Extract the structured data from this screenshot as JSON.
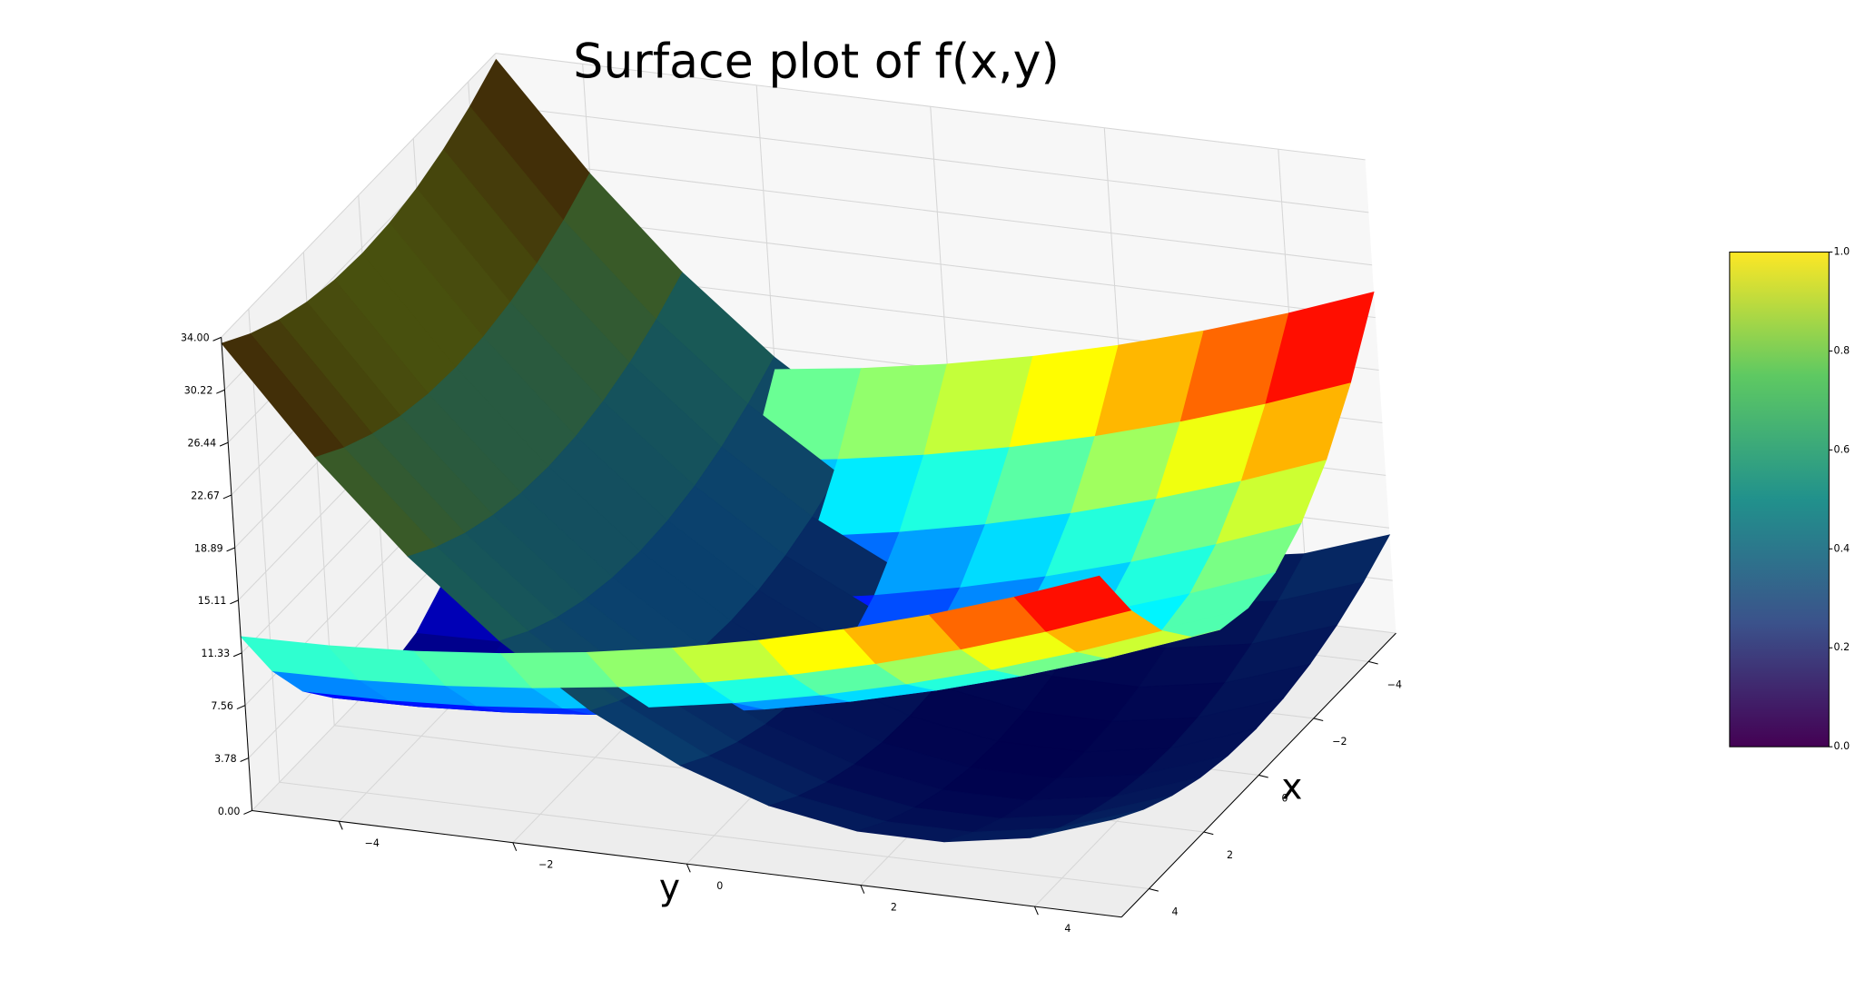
{
  "chart_data": {
    "type": "surface",
    "title": "Surface plot of f(x,y)",
    "x_label": "x",
    "y_label": "y",
    "x": [
      -5,
      -4,
      -3,
      -2,
      -1,
      0,
      1,
      2,
      3,
      4,
      5
    ],
    "y": [
      -5,
      -4,
      -3,
      -2,
      -1,
      0,
      1,
      2,
      3,
      4,
      5
    ],
    "xlim": [
      -5,
      5
    ],
    "ylim": [
      -5,
      5
    ],
    "zlim": [
      0,
      34
    ],
    "xticks": [
      {
        "value": -4,
        "label": "−4"
      },
      {
        "value": -2,
        "label": "−2"
      },
      0,
      2,
      4
    ],
    "yticks": [
      {
        "value": -4,
        "label": "−4"
      },
      {
        "value": -2,
        "label": "−2"
      },
      0,
      2,
      4
    ],
    "zticks": [
      {
        "value": 0,
        "label": "0.00"
      },
      3.78,
      7.56,
      11.33,
      15.11,
      18.89,
      22.67,
      26.44,
      30.22,
      {
        "value": 34,
        "label": "34.00"
      }
    ],
    "grid": true,
    "series": [
      {
        "colors": [
          "#00004d",
          "#0a3f6e",
          "#1a5a55",
          "#4a5a10",
          "#3a0000"
        ],
        "z": [
          [
            33.56,
            26.14,
            19.78,
            14.48,
            10.24,
            7.06,
            4.94,
            3.88,
            3.88,
            4.94,
            7.06
          ],
          [
            32.21,
            24.79,
            18.43,
            13.13,
            8.89,
            5.71,
            3.59,
            2.53,
            2.53,
            3.59,
            5.71
          ],
          [
            31.16,
            23.74,
            17.38,
            12.08,
            7.84,
            4.66,
            2.54,
            1.48,
            1.48,
            2.54,
            4.66
          ],
          [
            30.41,
            22.99,
            16.63,
            11.33,
            7.09,
            3.91,
            1.79,
            0.73,
            0.73,
            1.79,
            3.91
          ],
          [
            29.96,
            22.54,
            16.18,
            10.88,
            6.64,
            3.46,
            1.34,
            0.28,
            0.28,
            1.34,
            3.46
          ],
          [
            29.81,
            22.39,
            16.03,
            10.73,
            6.49,
            3.31,
            1.19,
            0.13,
            0.13,
            1.19,
            3.31
          ],
          [
            29.96,
            22.54,
            16.18,
            10.88,
            6.64,
            3.46,
            1.34,
            0.28,
            0.28,
            1.34,
            3.46
          ],
          [
            30.41,
            22.99,
            16.63,
            11.33,
            7.09,
            3.91,
            1.79,
            0.73,
            0.73,
            1.79,
            3.91
          ],
          [
            31.16,
            23.74,
            17.38,
            12.08,
            7.84,
            4.66,
            2.54,
            1.48,
            1.48,
            2.54,
            4.66
          ],
          [
            32.21,
            24.79,
            18.43,
            13.13,
            8.89,
            5.71,
            3.59,
            2.53,
            2.53,
            3.59,
            5.71
          ],
          [
            33.56,
            26.14,
            19.78,
            14.48,
            10.24,
            7.06,
            4.94,
            3.88,
            3.88,
            4.94,
            7.06
          ]
        ]
      },
      {
        "colors": [
          "#00007f",
          "#0000ff",
          "#007fff",
          "#00ffff",
          "#7fff7f",
          "#ffff00",
          "#ff7f00",
          "#ff0000",
          "#7f0000"
        ],
        "z": [
          [
            12.5,
            12.62,
            12.98,
            13.58,
            14.42,
            15.5,
            16.82,
            18.38,
            20.18,
            22.22,
            24.5
          ],
          [
            8,
            8.12,
            8.48,
            9.08,
            9.92,
            11,
            12.32,
            13.88,
            15.68,
            17.72,
            20
          ],
          [
            4.5,
            4.62,
            4.98,
            5.58,
            6.42,
            7.5,
            8.82,
            10.38,
            12.18,
            14.22,
            16.5
          ],
          [
            2,
            2.12,
            2.48,
            3.08,
            3.92,
            5,
            6.32,
            7.88,
            9.68,
            11.72,
            14
          ],
          [
            0.5,
            0.62,
            0.98,
            1.58,
            2.42,
            3.5,
            4.82,
            6.38,
            8.18,
            10.22,
            12.5
          ],
          [
            0,
            0.12,
            0.48,
            1.08,
            1.92,
            3,
            4.32,
            5.88,
            7.68,
            9.72,
            12
          ],
          [
            0.5,
            0.62,
            0.98,
            1.58,
            2.42,
            3.5,
            4.82,
            6.38,
            8.18,
            10.22,
            12.5
          ],
          [
            2,
            2.12,
            2.48,
            3.08,
            3.92,
            5,
            6.32,
            7.88,
            9.68,
            11.72,
            14
          ],
          [
            4.5,
            4.62,
            4.98,
            5.58,
            6.42,
            7.5,
            8.82,
            10.38,
            12.18,
            14.22,
            16.5
          ],
          [
            8,
            8.12,
            8.48,
            9.08,
            9.92,
            11,
            12.32,
            13.88,
            15.68,
            17.72,
            20
          ],
          [
            12.5,
            12.62,
            12.98,
            13.58,
            14.42,
            15.5,
            16.82,
            18.38,
            20.18,
            22.22,
            24.5
          ]
        ]
      }
    ],
    "colorbar": {
      "colors": [
        "#440154",
        "#3b528b",
        "#21918c",
        "#5ec962",
        "#fde725"
      ],
      "lim": [
        0,
        1
      ],
      "ticks": [
        {
          "value": 0,
          "label": "0.0"
        },
        0.2,
        0.4,
        0.6,
        0.8,
        {
          "value": 1,
          "label": "1.0"
        }
      ]
    }
  }
}
